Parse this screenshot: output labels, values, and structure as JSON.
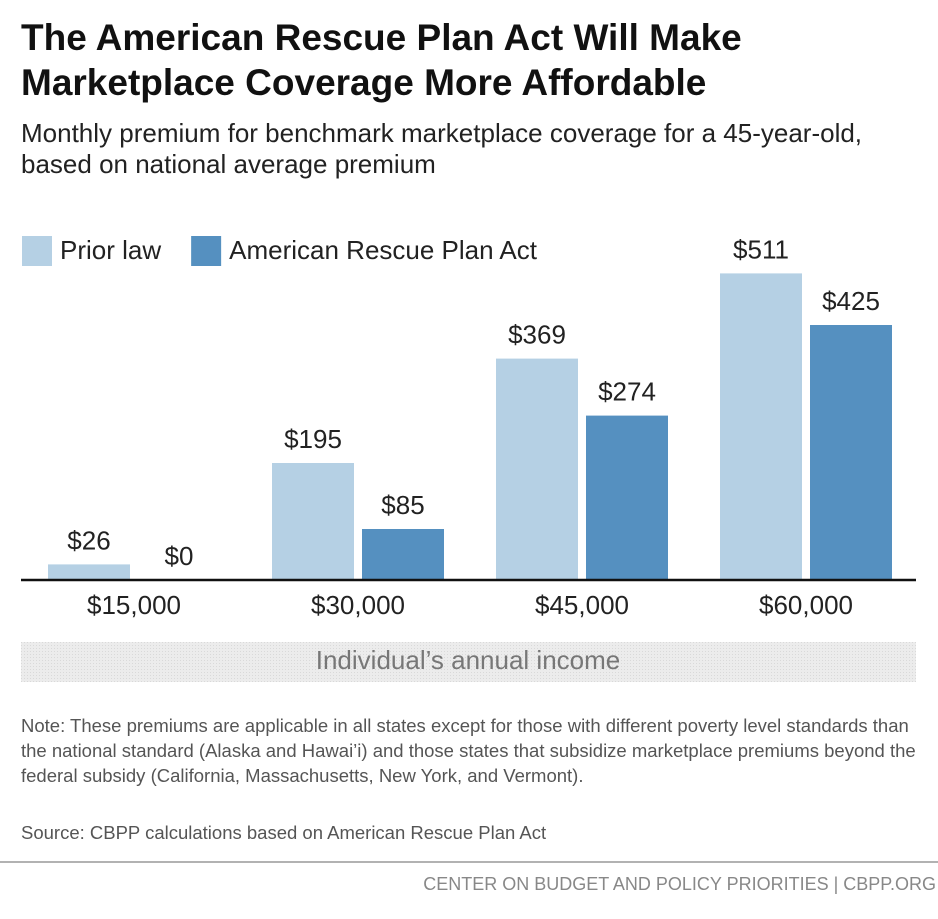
{
  "chart_data": {
    "type": "bar",
    "title": [
      "The American Rescue Plan Act Will Make",
      "Marketplace Coverage More Affordable"
    ],
    "subtitle": [
      "Monthly premium for benchmark marketplace coverage for a 45-year-old,",
      "based on national average premium"
    ],
    "categories": [
      "$15,000",
      "$30,000",
      "$45,000",
      "$60,000"
    ],
    "series": [
      {
        "name": "Prior law",
        "color": "#b5d0e4",
        "values": [
          26,
          195,
          369,
          511
        ],
        "value_labels": [
          "$26",
          "$195",
          "$369",
          "$511"
        ]
      },
      {
        "name": "American Rescue Plan Act",
        "color": "#5590c0",
        "values": [
          0,
          85,
          274,
          425
        ],
        "value_labels": [
          "$0",
          "$85",
          "$274",
          "$425"
        ]
      }
    ],
    "x_label": "Individual’s annual income",
    "note": "Note: These premiums are applicable in all states except for those with different poverty level standards than the national standard (Alaska and Hawai’i) and those states that subsidize marketplace premiums beyond the federal subsidy (California, Massachusetts, New York, and Vermont).",
    "source": "Source: CBPP calculations based on American Rescue Plan Act",
    "footer": "CENTER ON BUDGET AND POLICY PRIORITIES | CBPP.ORG"
  }
}
